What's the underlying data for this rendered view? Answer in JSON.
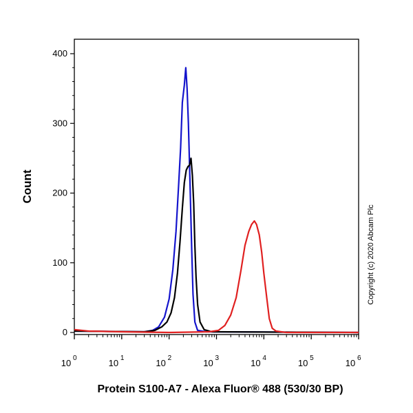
{
  "chart_data": {
    "type": "line",
    "xlabel": "Protein S100-A7 - Alexa Fluor® 488 (530/30 BP)",
    "ylabel": "Count",
    "x_scale": "log",
    "xlim": [
      1,
      1000000
    ],
    "ylim": [
      0,
      420
    ],
    "x_ticks": [
      {
        "value": 1,
        "base": "10",
        "exp": "0"
      },
      {
        "value": 10,
        "base": "10",
        "exp": "1"
      },
      {
        "value": 100,
        "base": "10",
        "exp": "2"
      },
      {
        "value": 1000,
        "base": "10",
        "exp": "3"
      },
      {
        "value": 10000,
        "base": "10",
        "exp": "4"
      },
      {
        "value": 100000,
        "base": "10",
        "exp": "5"
      },
      {
        "value": 1000000,
        "base": "10",
        "exp": "6"
      }
    ],
    "y_ticks": [
      {
        "value": 0,
        "label": "0"
      },
      {
        "value": 100,
        "label": "100"
      },
      {
        "value": 200,
        "label": "200"
      },
      {
        "value": 300,
        "label": "300"
      },
      {
        "value": 400,
        "label": "400"
      }
    ],
    "grid": false,
    "legend": "none",
    "series": [
      {
        "color": "#1414cc",
        "points": [
          [
            1,
            2
          ],
          [
            30,
            1
          ],
          [
            45,
            3
          ],
          [
            60,
            8
          ],
          [
            80,
            22
          ],
          [
            100,
            48
          ],
          [
            120,
            90
          ],
          [
            140,
            145
          ],
          [
            160,
            215
          ],
          [
            175,
            265
          ],
          [
            190,
            330
          ],
          [
            210,
            355
          ],
          [
            225,
            380
          ],
          [
            240,
            350
          ],
          [
            255,
            300
          ],
          [
            275,
            220
          ],
          [
            300,
            120
          ],
          [
            320,
            55
          ],
          [
            350,
            15
          ],
          [
            400,
            3
          ],
          [
            600,
            1
          ],
          [
            1000000,
            0
          ]
        ]
      },
      {
        "color": "#000000",
        "points": [
          [
            1,
            2
          ],
          [
            30,
            1
          ],
          [
            50,
            3
          ],
          [
            70,
            8
          ],
          [
            90,
            15
          ],
          [
            110,
            28
          ],
          [
            130,
            50
          ],
          [
            150,
            85
          ],
          [
            170,
            130
          ],
          [
            190,
            178
          ],
          [
            210,
            215
          ],
          [
            230,
            233
          ],
          [
            250,
            238
          ],
          [
            270,
            240
          ],
          [
            290,
            250
          ],
          [
            310,
            225
          ],
          [
            330,
            185
          ],
          [
            350,
            125
          ],
          [
            370,
            80
          ],
          [
            400,
            40
          ],
          [
            450,
            15
          ],
          [
            550,
            4
          ],
          [
            800,
            1
          ],
          [
            1000000,
            0
          ]
        ]
      },
      {
        "color": "#e02020",
        "points": [
          [
            1,
            4
          ],
          [
            2,
            2
          ],
          [
            10,
            1
          ],
          [
            100,
            0
          ],
          [
            700,
            1
          ],
          [
            1100,
            3
          ],
          [
            1500,
            10
          ],
          [
            2000,
            25
          ],
          [
            2600,
            50
          ],
          [
            3300,
            90
          ],
          [
            4000,
            125
          ],
          [
            4800,
            145
          ],
          [
            5500,
            155
          ],
          [
            6300,
            160
          ],
          [
            7000,
            155
          ],
          [
            8000,
            140
          ],
          [
            9000,
            115
          ],
          [
            10000,
            85
          ],
          [
            11500,
            50
          ],
          [
            13000,
            20
          ],
          [
            15000,
            6
          ],
          [
            18000,
            2
          ],
          [
            30000,
            0
          ],
          [
            1000000,
            0
          ]
        ]
      }
    ]
  },
  "copyright": "Copyright (c) 2020 Abcam Plc"
}
